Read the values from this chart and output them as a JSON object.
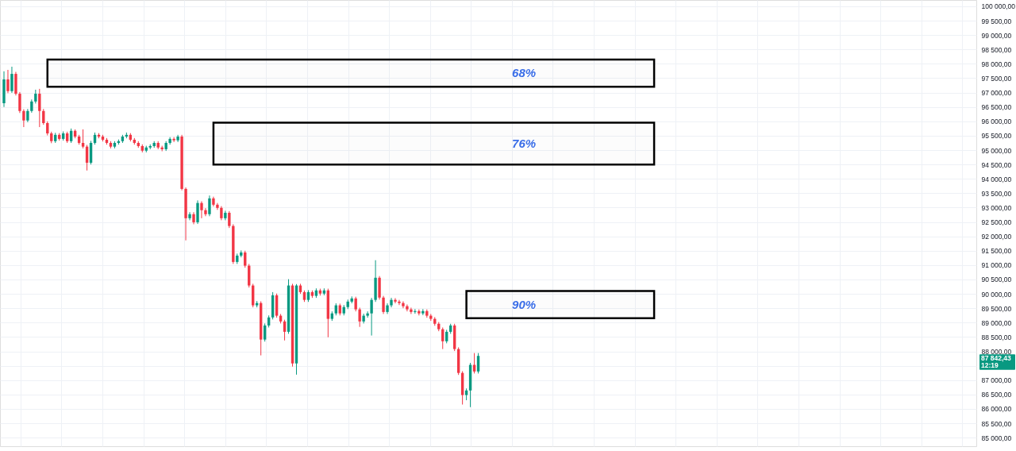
{
  "chart_data": {
    "type": "candlestick",
    "categories": [
      null,
      null,
      null,
      null,
      null,
      null,
      null,
      null,
      null,
      null,
      null,
      null,
      null,
      null,
      null,
      null,
      null,
      null,
      null,
      null,
      null,
      null,
      null,
      null,
      null,
      null,
      null,
      null,
      null,
      null,
      null,
      null,
      null,
      null,
      null,
      null,
      null,
      null,
      null,
      null,
      null,
      null,
      null,
      null,
      null,
      null,
      null,
      null,
      null,
      null,
      null,
      null,
      null,
      null,
      null,
      null,
      null,
      null,
      null,
      null,
      null,
      null,
      null,
      null,
      null,
      null,
      null,
      null,
      null,
      null,
      null,
      null,
      null,
      null,
      null,
      null,
      null,
      null,
      null,
      null,
      null,
      null,
      null,
      null,
      null,
      null,
      null,
      null,
      null,
      null,
      null,
      null,
      null,
      null,
      null,
      null,
      null,
      null,
      null,
      null,
      null,
      null,
      null,
      null,
      null,
      null,
      null,
      null,
      null,
      null,
      null,
      null,
      null,
      null,
      null,
      null,
      null,
      null,
      null,
      null,
      null,
      null,
      null,
      null,
      null,
      null,
      null,
      null,
      null,
      null,
      null,
      null,
      null,
      null,
      null,
      null,
      null,
      null,
      null,
      null,
      null,
      null,
      null,
      null,
      null,
      null,
      null,
      null,
      null,
      null,
      null,
      null,
      null,
      null,
      null,
      null,
      null,
      null,
      null,
      null,
      null,
      null,
      null,
      null,
      null,
      null,
      null,
      null,
      null,
      null,
      null,
      null,
      null,
      null,
      null,
      null,
      null,
      null,
      null,
      null,
      null,
      null,
      null,
      null,
      null,
      null,
      null,
      null,
      null,
      null,
      null,
      null,
      null,
      null,
      null,
      null,
      null,
      null,
      null,
      null,
      null,
      null,
      null,
      null,
      null,
      null,
      null,
      null,
      null,
      null,
      null,
      null,
      null,
      null,
      null,
      null,
      null,
      null,
      null,
      null,
      null,
      null,
      null,
      null,
      null,
      null,
      null,
      null,
      null,
      null,
      null,
      null,
      null,
      null,
      null,
      null,
      null,
      null,
      null,
      null,
      null,
      null,
      null,
      null,
      null,
      null
    ],
    "ohlc": [
      [
        96630,
        97740,
        96500,
        97460
      ],
      [
        97460,
        97790,
        96980,
        97050
      ],
      [
        97050,
        97900,
        96990,
        97650
      ],
      [
        97650,
        97720,
        96900,
        96960
      ],
      [
        96960,
        97020,
        96290,
        96360
      ],
      [
        96360,
        96420,
        95800,
        96030
      ],
      [
        96030,
        96430,
        95970,
        96360
      ],
      [
        96360,
        96760,
        96300,
        96690
      ],
      [
        96690,
        97100,
        96620,
        96960
      ],
      [
        96960,
        97130,
        95800,
        96360
      ],
      [
        96360,
        96430,
        95880,
        95940
      ],
      [
        95940,
        96000,
        95510,
        95580
      ],
      [
        95580,
        95640,
        95240,
        95310
      ],
      [
        95310,
        95600,
        95250,
        95530
      ],
      [
        95530,
        95590,
        95330,
        95390
      ],
      [
        95390,
        95650,
        95330,
        95580
      ],
      [
        95580,
        95640,
        95250,
        95310
      ],
      [
        95310,
        95750,
        95250,
        95670
      ],
      [
        95670,
        95720,
        95410,
        95470
      ],
      [
        95470,
        95530,
        95190,
        95250
      ],
      [
        95250,
        95720,
        95060,
        95120
      ],
      [
        95120,
        95180,
        94290,
        94560
      ],
      [
        94560,
        95320,
        94500,
        95250
      ],
      [
        95250,
        95610,
        95190,
        95530
      ],
      [
        95530,
        95590,
        95410,
        95470
      ],
      [
        95470,
        95530,
        95300,
        95360
      ],
      [
        95360,
        95420,
        95190,
        95250
      ],
      [
        95250,
        95310,
        95060,
        95120
      ],
      [
        95120,
        95310,
        95060,
        95250
      ],
      [
        95250,
        95370,
        95190,
        95310
      ],
      [
        95310,
        95530,
        95250,
        95470
      ],
      [
        95470,
        95610,
        95410,
        95530
      ],
      [
        95530,
        95590,
        95300,
        95360
      ],
      [
        95360,
        95420,
        95190,
        95250
      ],
      [
        95250,
        95310,
        95080,
        95140
      ],
      [
        95140,
        95200,
        94920,
        94980
      ],
      [
        94980,
        95150,
        94920,
        95090
      ],
      [
        95090,
        95200,
        95030,
        95140
      ],
      [
        95140,
        95310,
        95080,
        95250
      ],
      [
        95250,
        95310,
        95030,
        95090
      ],
      [
        95090,
        95150,
        94960,
        95030
      ],
      [
        95030,
        95310,
        94970,
        95250
      ],
      [
        95250,
        95450,
        95190,
        95390
      ],
      [
        95390,
        95450,
        95280,
        95340
      ],
      [
        95340,
        95530,
        95280,
        95470
      ],
      [
        95470,
        95530,
        93600,
        93650
      ],
      [
        93650,
        93700,
        91860,
        92630
      ],
      [
        92630,
        92840,
        92560,
        92770
      ],
      [
        92770,
        92840,
        92420,
        92490
      ],
      [
        92490,
        93250,
        92430,
        93160
      ],
      [
        93160,
        93220,
        92630,
        92910
      ],
      [
        92910,
        92980,
        92700,
        92770
      ],
      [
        92770,
        93420,
        92700,
        93320
      ],
      [
        93320,
        93380,
        93040,
        93100
      ],
      [
        93100,
        93160,
        92920,
        92990
      ],
      [
        92990,
        93050,
        92560,
        92630
      ],
      [
        92630,
        92890,
        92560,
        92820
      ],
      [
        92820,
        92880,
        92290,
        92360
      ],
      [
        92360,
        92420,
        91040,
        91110
      ],
      [
        91110,
        91400,
        91040,
        91330
      ],
      [
        91330,
        91510,
        91270,
        91440
      ],
      [
        91440,
        91500,
        90910,
        90980
      ],
      [
        90980,
        91040,
        90220,
        90290
      ],
      [
        90290,
        90350,
        89530,
        89600
      ],
      [
        89600,
        89750,
        89530,
        89680
      ],
      [
        89680,
        89740,
        87860,
        88410
      ],
      [
        88410,
        88970,
        88340,
        88900
      ],
      [
        88900,
        89250,
        88830,
        89180
      ],
      [
        89180,
        90060,
        89110,
        89950
      ],
      [
        89950,
        90010,
        89170,
        89240
      ],
      [
        89240,
        89300,
        88970,
        89040
      ],
      [
        89040,
        89100,
        88380,
        88680
      ],
      [
        88680,
        90510,
        88610,
        90290
      ],
      [
        90290,
        90350,
        87470,
        87580
      ],
      [
        87580,
        90340,
        87190,
        90290
      ],
      [
        90290,
        90350,
        90000,
        90060
      ],
      [
        90060,
        90120,
        89720,
        89790
      ],
      [
        89790,
        90130,
        89720,
        90060
      ],
      [
        90060,
        90120,
        89860,
        89930
      ],
      [
        89930,
        90190,
        89860,
        90120
      ],
      [
        90120,
        90180,
        89940,
        90010
      ],
      [
        90010,
        90190,
        89950,
        90120
      ],
      [
        90120,
        90180,
        88490,
        89130
      ],
      [
        89130,
        89390,
        89060,
        89320
      ],
      [
        89320,
        89670,
        89250,
        89600
      ],
      [
        89600,
        89660,
        89250,
        89320
      ],
      [
        89320,
        89610,
        89250,
        89540
      ],
      [
        89540,
        89800,
        89470,
        89730
      ],
      [
        89730,
        89910,
        89670,
        89840
      ],
      [
        89840,
        89900,
        89390,
        89460
      ],
      [
        89460,
        89520,
        88850,
        89040
      ],
      [
        89040,
        89310,
        88970,
        89240
      ],
      [
        89240,
        89390,
        89170,
        89320
      ],
      [
        89320,
        89860,
        88550,
        89790
      ],
      [
        89790,
        91170,
        89720,
        90560
      ],
      [
        90560,
        90620,
        89800,
        89870
      ],
      [
        89870,
        89930,
        89300,
        89370
      ],
      [
        89370,
        89670,
        89300,
        89600
      ],
      [
        89600,
        89860,
        89530,
        89790
      ],
      [
        89790,
        89850,
        89670,
        89730
      ],
      [
        89730,
        89790,
        89610,
        89680
      ],
      [
        89680,
        89740,
        89500,
        89570
      ],
      [
        89570,
        89630,
        89390,
        89460
      ],
      [
        89460,
        89520,
        89300,
        89370
      ],
      [
        89370,
        89470,
        89310,
        89400
      ],
      [
        89400,
        89460,
        89250,
        89320
      ],
      [
        89320,
        89470,
        89260,
        89400
      ],
      [
        89400,
        89460,
        89170,
        89240
      ],
      [
        89240,
        89300,
        89060,
        89130
      ],
      [
        89130,
        89190,
        88890,
        88960
      ],
      [
        88960,
        89020,
        88700,
        88770
      ],
      [
        88770,
        88830,
        88080,
        88350
      ],
      [
        88350,
        88750,
        88280,
        88680
      ],
      [
        88680,
        88960,
        88610,
        88900
      ],
      [
        88900,
        88960,
        88010,
        88080
      ],
      [
        88080,
        88140,
        87180,
        87250
      ],
      [
        87250,
        87310,
        86150,
        86480
      ],
      [
        86480,
        86710,
        86300,
        86640
      ],
      [
        86640,
        87600,
        86060,
        87530
      ],
      [
        87530,
        87940,
        87230,
        87300
      ],
      [
        87300,
        87940,
        87230,
        87842.43
      ],
      null,
      null,
      null,
      null,
      null,
      null,
      null,
      null,
      null,
      null,
      null,
      null,
      null,
      null,
      null,
      null,
      null,
      null,
      null,
      null,
      null,
      null,
      null,
      null,
      null,
      null,
      null,
      null,
      null,
      null,
      null,
      null,
      null,
      null,
      null,
      null,
      null,
      null,
      null,
      null,
      null,
      null,
      null,
      null,
      null,
      null,
      null,
      null,
      null,
      null,
      null,
      null,
      null,
      null,
      null,
      null,
      null,
      null,
      null,
      null,
      null,
      null,
      null,
      null,
      null,
      null,
      null,
      null,
      null,
      null,
      null,
      null,
      null,
      null,
      null,
      null,
      null,
      null,
      null,
      null,
      null,
      null,
      null,
      null,
      null,
      null,
      null,
      null,
      null,
      null,
      null,
      null,
      null,
      null,
      null,
      null,
      null,
      null,
      null,
      null,
      null,
      null,
      null,
      null,
      null,
      null,
      null,
      null,
      null,
      null,
      null,
      null,
      null,
      null,
      null,
      null,
      null,
      null,
      null,
      null,
      null,
      null,
      null,
      null,
      null
    ],
    "colors": [
      "#089981",
      "#f23645",
      "#089981",
      "#f23645",
      "#f23645",
      "#f23645",
      "#089981",
      "#089981",
      "#089981",
      "#f23645",
      "#f23645",
      "#f23645",
      "#f23645",
      "#089981",
      "#f23645",
      "#089981",
      "#f23645",
      "#089981",
      "#f23645",
      "#f23645",
      "#f23645",
      "#f23645",
      "#089981",
      "#089981",
      "#f23645",
      "#f23645",
      "#f23645",
      "#f23645",
      "#089981",
      "#089981",
      "#089981",
      "#089981",
      "#f23645",
      "#f23645",
      "#f23645",
      "#f23645",
      "#089981",
      "#089981",
      "#089981",
      "#f23645",
      "#f23645",
      "#089981",
      "#089981",
      "#f23645",
      "#089981",
      "#f23645",
      "#f23645",
      "#089981",
      "#f23645",
      "#089981",
      "#f23645",
      "#f23645",
      "#089981",
      "#f23645",
      "#f23645",
      "#f23645",
      "#089981",
      "#f23645",
      "#f23645",
      "#089981",
      "#089981",
      "#f23645",
      "#f23645",
      "#f23645",
      "#089981",
      "#f23645",
      "#089981",
      "#089981",
      "#089981",
      "#f23645",
      "#f23645",
      "#f23645",
      "#089981",
      "#f23645",
      "#089981",
      "#f23645",
      "#f23645",
      "#089981",
      "#f23645",
      "#089981",
      "#f23645",
      "#089981",
      "#f23645",
      "#089981",
      "#089981",
      "#f23645",
      "#089981",
      "#089981",
      "#089981",
      "#f23645",
      "#f23645",
      "#089981",
      "#089981",
      "#089981",
      "#089981",
      "#f23645",
      "#f23645",
      "#089981",
      "#089981",
      "#f23645",
      "#f23645",
      "#f23645",
      "#f23645",
      "#f23645",
      "#089981",
      "#f23645",
      "#089981",
      "#f23645",
      "#f23645",
      "#f23645",
      "#f23645",
      "#f23645",
      "#089981",
      "#089981",
      "#f23645",
      "#f23645",
      "#f23645",
      "#089981",
      "#089981",
      "#f23645",
      "#089981",
      null,
      null,
      null,
      null,
      null,
      null,
      null,
      null,
      null,
      null,
      null,
      null,
      null,
      null,
      null,
      null,
      null,
      null,
      null,
      null,
      null,
      null,
      null,
      null,
      null,
      null,
      null,
      null,
      null,
      null,
      null,
      null,
      null,
      null,
      null,
      null,
      null,
      null,
      null,
      null,
      null,
      null,
      null,
      null,
      null,
      null,
      null,
      null,
      null,
      null,
      null,
      null,
      null,
      null,
      null,
      null,
      null,
      null,
      null,
      null,
      null,
      null,
      null,
      null,
      null,
      null,
      null,
      null,
      null,
      null,
      null,
      null,
      null,
      null,
      null,
      null,
      null,
      null,
      null,
      null,
      null,
      null,
      null,
      null,
      null,
      null,
      null,
      null,
      null,
      null,
      null,
      null,
      null,
      null,
      null,
      null,
      null,
      null,
      null,
      null,
      null,
      null,
      null,
      null,
      null,
      null,
      null,
      null,
      null,
      null,
      null,
      null,
      null,
      null,
      null,
      null,
      null,
      null,
      null,
      null,
      null,
      null,
      null,
      null,
      null
    ],
    "ylim": [
      84700,
      100220
    ],
    "yticks": [
      {
        "value": 85000,
        "label": "85 000,00"
      },
      {
        "value": 85500,
        "label": "85 500,00"
      },
      {
        "value": 86000,
        "label": "86 000,00"
      },
      {
        "value": 86500,
        "label": "86 500,00"
      },
      {
        "value": 87000,
        "label": "87 000,00"
      },
      {
        "value": 87500,
        "label": null
      },
      {
        "value": 88000,
        "label": "88 000,00"
      },
      {
        "value": 88500,
        "label": "88 500,00"
      },
      {
        "value": 89000,
        "label": "89 000,00"
      },
      {
        "value": 89500,
        "label": "89 500,00"
      },
      {
        "value": 90000,
        "label": "90 000,00"
      },
      {
        "value": 90500,
        "label": "90 500,00"
      },
      {
        "value": 91000,
        "label": "91 000,00"
      },
      {
        "value": 91500,
        "label": "91 500,00"
      },
      {
        "value": 92000,
        "label": "92 000,00"
      },
      {
        "value": 92500,
        "label": "92 500,00"
      },
      {
        "value": 93000,
        "label": "93 000,00"
      },
      {
        "value": 93500,
        "label": "93 500,00"
      },
      {
        "value": 94000,
        "label": "94 000,00"
      },
      {
        "value": 94500,
        "label": "94 500,00"
      },
      {
        "value": 95000,
        "label": "95 000,00"
      },
      {
        "value": 95500,
        "label": "95 500,00"
      },
      {
        "value": 96000,
        "label": "96 000,00"
      },
      {
        "value": 96500,
        "label": "96 500,00"
      },
      {
        "value": 97000,
        "label": "97 000,00"
      },
      {
        "value": 97500,
        "label": "97 500,00"
      },
      {
        "value": 98000,
        "label": "98 000,00"
      },
      {
        "value": 98500,
        "label": "98 500,00"
      },
      {
        "value": 99000,
        "label": "99 000,00"
      },
      {
        "value": 99500,
        "label": "99 500,00"
      },
      {
        "value": 100000,
        "label": "100 000,00"
      }
    ],
    "bands": [
      {
        "axis": "y",
        "from": 97200,
        "to": 98150,
        "label": "68%",
        "color": "#000000"
      },
      {
        "axis": "y",
        "from": 94500,
        "to": 95950,
        "label": "76%",
        "color": "#000000"
      },
      {
        "axis": "y",
        "from": 89150,
        "to": 90100,
        "label": "90%",
        "color": "#000000"
      }
    ],
    "annotations": [
      "87 842,43",
      "12:19"
    ],
    "grid": true,
    "tick_labels": "y"
  }
}
